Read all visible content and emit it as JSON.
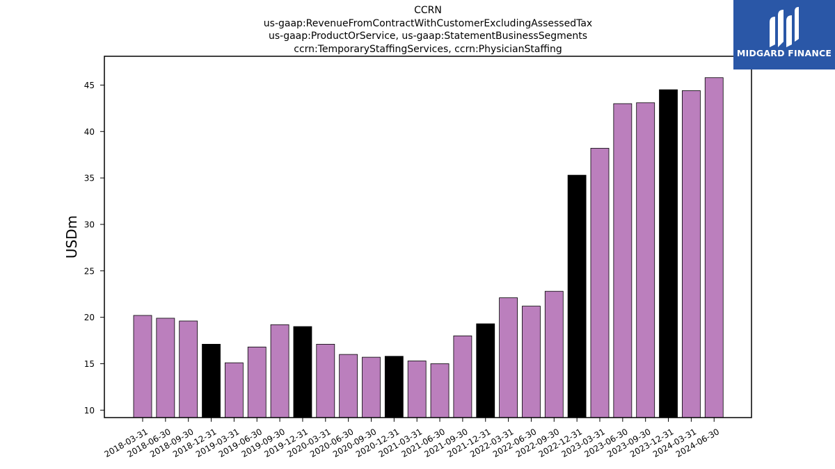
{
  "header": {
    "title_lines": [
      "CCRN",
      "us-gaap:RevenueFromContractWithCustomerExcludingAssessedTax",
      "us-gaap:ProductOrService, us-gaap:StatementBusinessSegments",
      "ccrn:TemporaryStaffingServices, ccrn:PhysicianStaffing"
    ]
  },
  "logo": {
    "text": "MIDGARD FINANCE",
    "icon": "midgard-logo-icon"
  },
  "colors": {
    "regular": "#bb7fbd",
    "year_end": "#000000",
    "axis": "#000000"
  },
  "chart_data": {
    "type": "bar",
    "ylabel": "USDm",
    "xlabel": "",
    "ylim": [
      9.2,
      48.1
    ],
    "yticks": [
      10,
      15,
      20,
      25,
      30,
      35,
      40,
      45
    ],
    "grid": false,
    "categories": [
      "2018-03-31",
      "2018-06-30",
      "2018-09-30",
      "2018-12-31",
      "2019-03-31",
      "2019-06-30",
      "2019-09-30",
      "2019-12-31",
      "2020-03-31",
      "2020-06-30",
      "2020-09-30",
      "2020-12-31",
      "2021-03-31",
      "2021-06-30",
      "2021-09-30",
      "2021-12-31",
      "2022-03-31",
      "2022-06-30",
      "2022-09-30",
      "2022-12-31",
      "2023-03-31",
      "2023-06-30",
      "2023-09-30",
      "2023-12-31",
      "2024-03-31",
      "2024-06-30"
    ],
    "values": [
      20.2,
      19.9,
      19.6,
      17.1,
      15.1,
      16.8,
      19.2,
      19.0,
      17.1,
      16.0,
      15.7,
      15.8,
      15.3,
      15.0,
      18.0,
      19.3,
      22.1,
      21.2,
      22.8,
      35.3,
      38.2,
      43.0,
      43.1,
      44.5,
      44.4,
      45.8
    ],
    "highlight": [
      false,
      false,
      false,
      true,
      false,
      false,
      false,
      true,
      false,
      false,
      false,
      true,
      false,
      false,
      false,
      true,
      false,
      false,
      false,
      true,
      false,
      false,
      false,
      true,
      false,
      false
    ]
  }
}
